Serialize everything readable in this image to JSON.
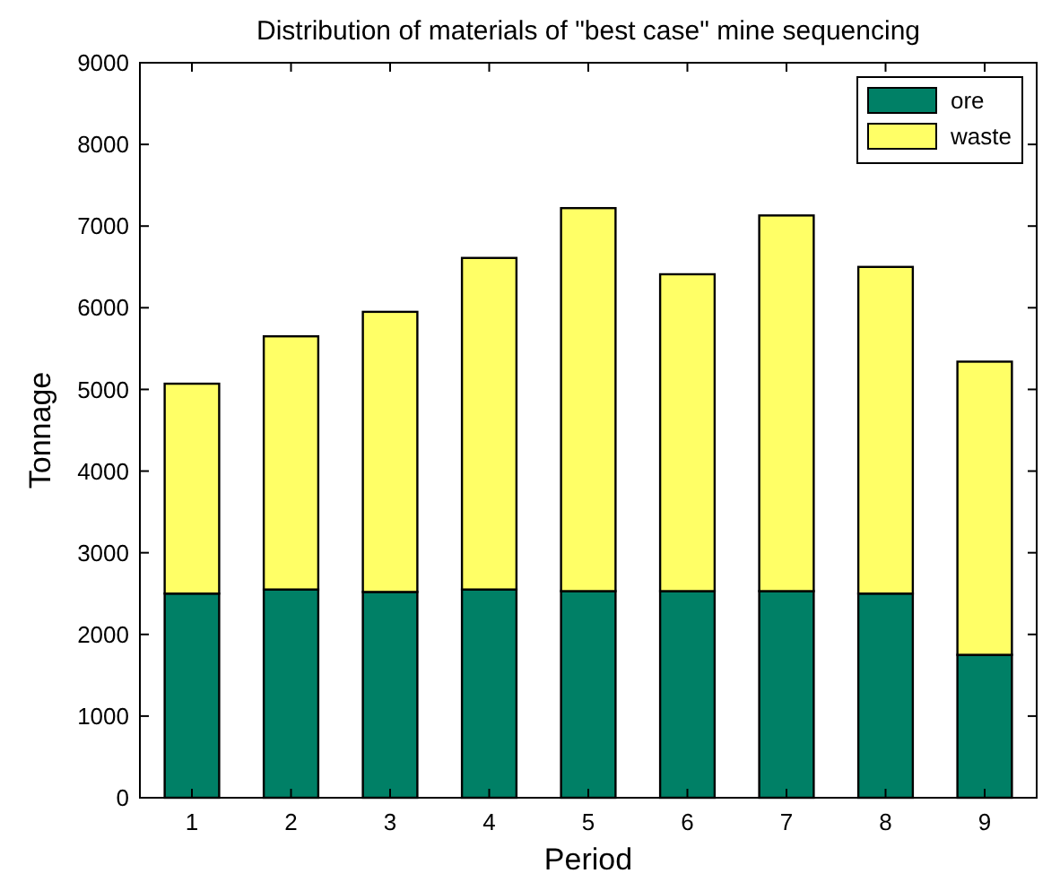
{
  "chart_data": {
    "type": "bar",
    "title": "Distribution of materials of \"best case\" mine sequencing",
    "xlabel": "Period",
    "ylabel": "Tonnage",
    "categories": [
      "1",
      "2",
      "3",
      "4",
      "5",
      "6",
      "7",
      "8",
      "9"
    ],
    "stacked": true,
    "series": [
      {
        "name": "ore",
        "color": "#008066",
        "values": [
          2500,
          2550,
          2520,
          2550,
          2530,
          2530,
          2530,
          2500,
          1750
        ]
      },
      {
        "name": "waste",
        "color": "#ffff66",
        "values": [
          2570,
          3100,
          3430,
          4060,
          4690,
          3880,
          4600,
          4000,
          3590
        ]
      }
    ],
    "ylim": [
      0,
      9000
    ],
    "yticks": [
      0,
      1000,
      2000,
      3000,
      4000,
      5000,
      6000,
      7000,
      8000,
      9000
    ],
    "grid": false,
    "legend": "top right"
  }
}
